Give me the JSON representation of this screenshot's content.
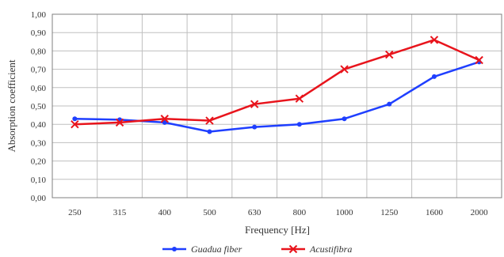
{
  "chart_data": {
    "type": "line",
    "categories": [
      "250",
      "315",
      "400",
      "500",
      "630",
      "800",
      "1000",
      "1250",
      "1600",
      "2000"
    ],
    "ylim": [
      0,
      1
    ],
    "yticks": [
      "0,00",
      "0,10",
      "0,20",
      "0,30",
      "0,40",
      "0,50",
      "0,60",
      "0,70",
      "0,80",
      "0,90",
      "1,00"
    ],
    "xlabel": "Frequency [Hz]",
    "ylabel": "Absorption coefficient",
    "grid": true,
    "legend_position": "bottom",
    "series": [
      {
        "name": "Guadua fiber",
        "color": "#1f3fff",
        "marker": "dot",
        "values": [
          0.43,
          0.425,
          0.41,
          0.36,
          0.385,
          0.4,
          0.43,
          0.51,
          0.66,
          0.74
        ]
      },
      {
        "name": "Acustifibra",
        "color": "#e8141c",
        "marker": "x",
        "values": [
          0.4,
          0.41,
          0.43,
          0.42,
          0.51,
          0.54,
          0.7,
          0.78,
          0.86,
          0.75
        ]
      }
    ]
  }
}
